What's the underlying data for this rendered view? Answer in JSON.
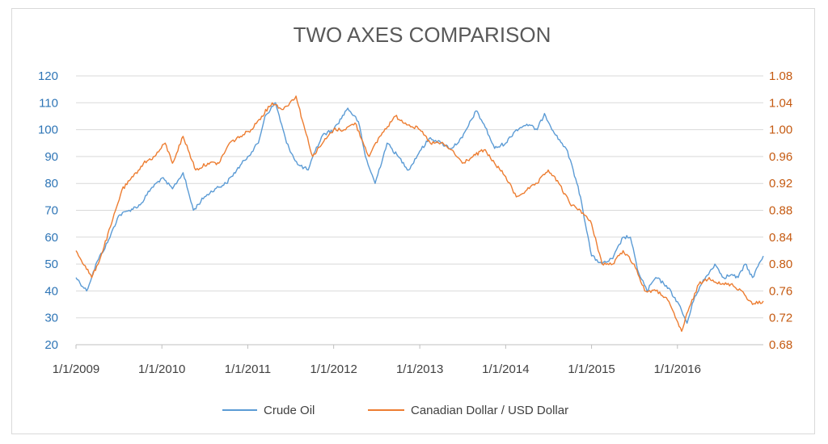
{
  "chart_data": {
    "type": "line",
    "title": "TWO AXES COMPARISON",
    "x_tick_labels": [
      "1/1/2009",
      "1/1/2010",
      "1/1/2011",
      "1/1/2012",
      "1/1/2013",
      "1/1/2014",
      "1/1/2015",
      "1/1/2016"
    ],
    "x_range": [
      "2009-01-01",
      "2016-12-31"
    ],
    "y_left": {
      "ticks": [
        "120",
        "110",
        "100",
        "90",
        "80",
        "70",
        "60",
        "50",
        "40",
        "30",
        "20"
      ],
      "range": [
        20,
        120
      ]
    },
    "y_right": {
      "ticks": [
        "1.08",
        "1.04",
        "1.00",
        "0.96",
        "0.92",
        "0.88",
        "0.84",
        "0.80",
        "0.76",
        "0.72",
        "0.68"
      ],
      "range": [
        0.68,
        1.08
      ]
    },
    "grid": true,
    "legend_position": "bottom",
    "series": [
      {
        "name": "Crude Oil",
        "axis": "left",
        "color": "#5b9bd5",
        "x": [
          "2009-01-01",
          "2009-02-15",
          "2009-04-01",
          "2009-05-15",
          "2009-07-01",
          "2009-08-15",
          "2009-10-01",
          "2009-11-15",
          "2010-01-01",
          "2010-02-15",
          "2010-04-01",
          "2010-05-15",
          "2010-07-01",
          "2010-08-15",
          "2010-10-01",
          "2010-11-15",
          "2011-01-01",
          "2011-02-15",
          "2011-03-15",
          "2011-04-29",
          "2011-06-15",
          "2011-08-01",
          "2011-09-15",
          "2011-10-15",
          "2011-11-15",
          "2012-01-01",
          "2012-03-01",
          "2012-04-15",
          "2012-05-15",
          "2012-06-25",
          "2012-08-15",
          "2012-10-01",
          "2012-11-15",
          "2013-01-01",
          "2013-02-15",
          "2013-04-01",
          "2013-05-15",
          "2013-07-01",
          "2013-08-28",
          "2013-10-01",
          "2013-11-15",
          "2014-01-01",
          "2014-02-15",
          "2014-04-01",
          "2014-05-15",
          "2014-06-15",
          "2014-08-01",
          "2014-09-15",
          "2014-10-15",
          "2014-11-15",
          "2015-01-01",
          "2015-02-15",
          "2015-04-01",
          "2015-05-15",
          "2015-06-15",
          "2015-07-15",
          "2015-08-25",
          "2015-10-01",
          "2015-11-15",
          "2016-01-01",
          "2016-02-11",
          "2016-03-15",
          "2016-04-15",
          "2016-06-08",
          "2016-07-15",
          "2016-08-15",
          "2016-09-15",
          "2016-10-15",
          "2016-11-15",
          "2016-12-31"
        ],
        "values": [
          45,
          40,
          51,
          58,
          68,
          70,
          72,
          78,
          82,
          78,
          84,
          70,
          75,
          78,
          80,
          85,
          90,
          95,
          105,
          110,
          95,
          87,
          85,
          92,
          98,
          100,
          108,
          103,
          90,
          80,
          95,
          90,
          85,
          92,
          97,
          95,
          93,
          97,
          107,
          102,
          93,
          95,
          100,
          102,
          100,
          106,
          98,
          93,
          85,
          75,
          53,
          50,
          52,
          60,
          60,
          48,
          40,
          45,
          42,
          36,
          28,
          38,
          43,
          50,
          45,
          46,
          45,
          50,
          45,
          53
        ]
      },
      {
        "name": "Canadian Dollar / USD Dollar",
        "axis": "right",
        "color": "#ed7d31",
        "x": [
          "2009-01-01",
          "2009-03-09",
          "2009-04-15",
          "2009-06-01",
          "2009-07-15",
          "2009-09-01",
          "2009-10-15",
          "2009-12-01",
          "2010-01-15",
          "2010-02-15",
          "2010-04-01",
          "2010-05-25",
          "2010-07-15",
          "2010-08-31",
          "2010-10-15",
          "2010-12-01",
          "2011-01-15",
          "2011-03-01",
          "2011-04-15",
          "2011-06-01",
          "2011-07-25",
          "2011-09-01",
          "2011-10-04",
          "2011-11-15",
          "2012-01-01",
          "2012-02-15",
          "2012-04-01",
          "2012-05-31",
          "2012-07-15",
          "2012-09-19",
          "2012-11-01",
          "2013-01-01",
          "2013-02-15",
          "2013-04-01",
          "2013-05-15",
          "2013-07-01",
          "2013-08-15",
          "2013-10-01",
          "2013-11-15",
          "2014-01-01",
          "2014-02-15",
          "2014-04-01",
          "2014-05-15",
          "2014-07-01",
          "2014-08-15",
          "2014-10-01",
          "2014-11-15",
          "2015-01-01",
          "2015-02-15",
          "2015-04-01",
          "2015-05-15",
          "2015-07-01",
          "2015-08-15",
          "2015-10-01",
          "2015-11-15",
          "2016-01-19",
          "2016-02-15",
          "2016-04-01",
          "2016-05-15",
          "2016-07-01",
          "2016-08-15",
          "2016-10-01",
          "2016-11-15",
          "2016-12-31"
        ],
        "values": [
          0.82,
          0.78,
          0.81,
          0.86,
          0.91,
          0.93,
          0.95,
          0.96,
          0.98,
          0.95,
          0.99,
          0.94,
          0.95,
          0.95,
          0.98,
          0.99,
          1.0,
          1.02,
          1.04,
          1.03,
          1.05,
          1.0,
          0.96,
          0.98,
          1.0,
          1.0,
          1.01,
          0.96,
          0.99,
          1.02,
          1.01,
          1.0,
          0.98,
          0.98,
          0.97,
          0.95,
          0.96,
          0.97,
          0.95,
          0.93,
          0.9,
          0.91,
          0.92,
          0.94,
          0.92,
          0.89,
          0.88,
          0.86,
          0.8,
          0.8,
          0.82,
          0.8,
          0.76,
          0.76,
          0.75,
          0.7,
          0.73,
          0.77,
          0.78,
          0.77,
          0.77,
          0.76,
          0.74,
          0.745
        ]
      }
    ]
  }
}
